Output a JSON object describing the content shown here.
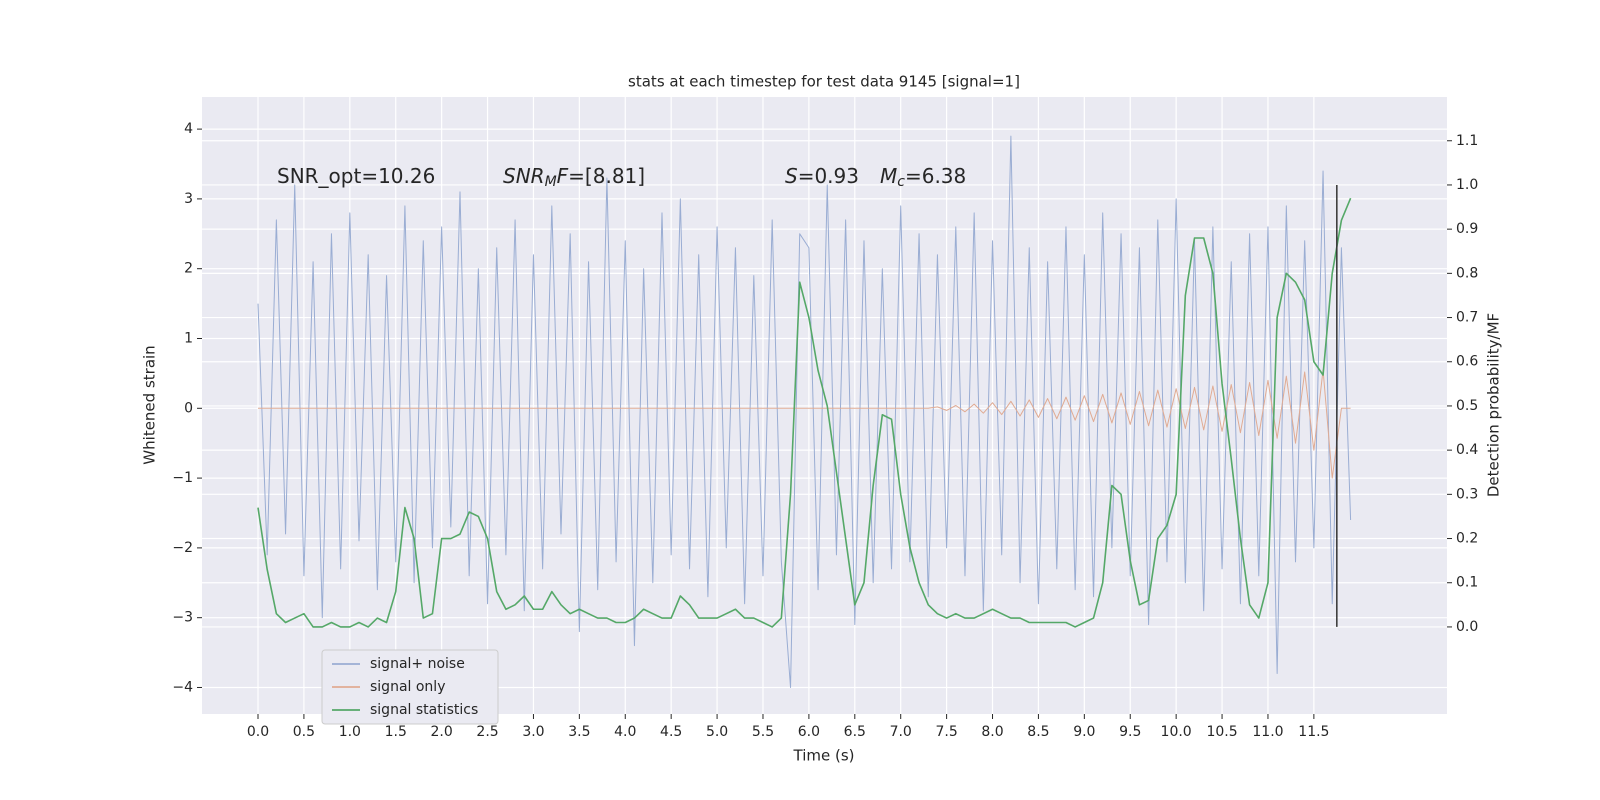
{
  "chart_data": {
    "type": "line",
    "title": "stats at each timestep for test data 9145 [signal=1]",
    "xlabel": "Time (s)",
    "ylabel": "Whitened strain",
    "y2label": "Detection probability/MF",
    "annotations": [
      {
        "parts": [
          {
            "text": "SNR_opt=10.26"
          }
        ]
      },
      {
        "parts": [
          {
            "text": "SNR",
            "italic": true
          },
          {
            "text": "M",
            "italic": true,
            "sub": true
          },
          {
            "text": "F",
            "italic": true
          },
          {
            "text": "=[8.81]"
          }
        ]
      },
      {
        "parts": [
          {
            "text": "S",
            "italic": true
          },
          {
            "text": "=0.93"
          }
        ]
      },
      {
        "parts": [
          {
            "text": "M",
            "italic": true
          },
          {
            "text": "c",
            "italic": true,
            "sub": true
          },
          {
            "text": "=6.38"
          }
        ]
      }
    ],
    "x": [
      0,
      0.1,
      0.2,
      0.3,
      0.4,
      0.5,
      0.6,
      0.7,
      0.8,
      0.9,
      1,
      1.1,
      1.2,
      1.3,
      1.4,
      1.5,
      1.6,
      1.7,
      1.8,
      1.9,
      2,
      2.1,
      2.2,
      2.3,
      2.4,
      2.5,
      2.6,
      2.7,
      2.8,
      2.9,
      3,
      3.1,
      3.2,
      3.3,
      3.4,
      3.5,
      3.6,
      3.7,
      3.8,
      3.9,
      4,
      4.1,
      4.2,
      4.3,
      4.4,
      4.5,
      4.6,
      4.7,
      4.8,
      4.9,
      5,
      5.1,
      5.2,
      5.3,
      5.4,
      5.5,
      5.6,
      5.7,
      5.8,
      5.9,
      6,
      6.1,
      6.2,
      6.3,
      6.4,
      6.5,
      6.6,
      6.7,
      6.8,
      6.9,
      7,
      7.1,
      7.2,
      7.3,
      7.4,
      7.5,
      7.6,
      7.7,
      7.8,
      7.9,
      8,
      8.1,
      8.2,
      8.3,
      8.4,
      8.5,
      8.6,
      8.7,
      8.8,
      8.9,
      9,
      9.1,
      9.2,
      9.3,
      9.4,
      9.5,
      9.6,
      9.7,
      9.8,
      9.9,
      10,
      10.1,
      10.2,
      10.3,
      10.4,
      10.5,
      10.6,
      10.7,
      10.8,
      10.9,
      11,
      11.1,
      11.2,
      11.3,
      11.4,
      11.5,
      11.6,
      11.7,
      11.8,
      11.9
    ],
    "series": [
      {
        "name": "signal+ noise",
        "color": "#9aadd3",
        "width": 1,
        "values": [
          1.5,
          -2.1,
          2.7,
          -1.8,
          3.2,
          -2.4,
          2.1,
          -3.0,
          2.5,
          -2.3,
          2.8,
          -1.9,
          2.2,
          -2.6,
          1.9,
          -2.2,
          2.9,
          -2.5,
          2.4,
          -2.0,
          2.6,
          -1.7,
          3.1,
          -2.4,
          2.0,
          -2.8,
          2.3,
          -2.1,
          2.7,
          -2.9,
          2.2,
          -2.3,
          2.9,
          -1.8,
          2.5,
          -3.2,
          2.1,
          -2.6,
          3.3,
          -2.2,
          2.4,
          -3.4,
          2.0,
          -2.5,
          2.8,
          -2.1,
          3.0,
          -2.3,
          2.2,
          -2.7,
          2.6,
          -2.0,
          2.3,
          -2.8,
          1.9,
          -2.4,
          2.7,
          -2.2,
          -4.0,
          2.5,
          2.3,
          -2.6,
          3.2,
          -2.1,
          2.7,
          -3.1,
          2.4,
          -2.5,
          2.0,
          -2.3,
          2.9,
          -2.2,
          2.5,
          -2.7,
          2.2,
          -2.0,
          2.6,
          -2.4,
          2.8,
          -2.9,
          2.4,
          -2.1,
          3.9,
          -2.5,
          2.3,
          -2.8,
          2.1,
          -2.3,
          2.6,
          -2.6,
          2.2,
          -2.7,
          2.8,
          -2.0,
          2.5,
          -2.4,
          2.3,
          -3.1,
          2.7,
          -2.2,
          3.0,
          -2.5,
          2.4,
          -2.9,
          2.6,
          -2.3,
          2.1,
          -2.8,
          2.5,
          -2.4,
          2.6,
          -3.8,
          2.9,
          -2.2,
          2.4,
          -2.0,
          3.4,
          -2.8,
          2.3,
          -1.6
        ]
      },
      {
        "name": "signal only",
        "color": "#e0ab93",
        "width": 1,
        "values": [
          0,
          0,
          0,
          0,
          0,
          0,
          0,
          0,
          0,
          0,
          0,
          0,
          0,
          0,
          0,
          0,
          0,
          0,
          0,
          0,
          0,
          0,
          0,
          0,
          0,
          0,
          0,
          0,
          0,
          0,
          0,
          0,
          0,
          0,
          0,
          0,
          0,
          0,
          0,
          0,
          0,
          0,
          0,
          0,
          0,
          0,
          0,
          0,
          0,
          0,
          0,
          0,
          0,
          0,
          0,
          0,
          0,
          0,
          0,
          0,
          0,
          0,
          0,
          0,
          0,
          0,
          0,
          0,
          0,
          0,
          0,
          0,
          0,
          0,
          0.02,
          -0.03,
          0.04,
          -0.05,
          0.06,
          -0.07,
          0.08,
          -0.09,
          0.1,
          -0.11,
          0.12,
          -0.13,
          0.14,
          -0.15,
          0.16,
          -0.17,
          0.18,
          -0.19,
          0.2,
          -0.21,
          0.22,
          -0.23,
          0.24,
          -0.25,
          0.26,
          -0.27,
          0.28,
          -0.29,
          0.3,
          -0.31,
          0.32,
          -0.33,
          0.34,
          -0.35,
          0.37,
          -0.39,
          0.4,
          -0.43,
          0.46,
          -0.5,
          0.52,
          -0.6,
          0.55,
          -1.0,
          0,
          0
        ]
      },
      {
        "name": "signal statistics",
        "color": "#55a868",
        "width": 1.6,
        "axis": "y2",
        "values": [
          0.27,
          0.13,
          0.03,
          0.01,
          0.02,
          0.03,
          0.0,
          0.0,
          0.01,
          0.0,
          0.0,
          0.01,
          0.0,
          0.02,
          0.01,
          0.08,
          0.27,
          0.2,
          0.02,
          0.03,
          0.2,
          0.2,
          0.21,
          0.26,
          0.25,
          0.2,
          0.08,
          0.04,
          0.05,
          0.07,
          0.04,
          0.04,
          0.08,
          0.05,
          0.03,
          0.04,
          0.03,
          0.02,
          0.02,
          0.01,
          0.01,
          0.02,
          0.04,
          0.03,
          0.02,
          0.02,
          0.07,
          0.05,
          0.02,
          0.02,
          0.02,
          0.03,
          0.04,
          0.02,
          0.02,
          0.01,
          0.0,
          0.02,
          0.3,
          0.78,
          0.7,
          0.58,
          0.5,
          0.35,
          0.2,
          0.05,
          0.1,
          0.32,
          0.48,
          0.47,
          0.3,
          0.18,
          0.1,
          0.05,
          0.03,
          0.02,
          0.03,
          0.02,
          0.02,
          0.03,
          0.04,
          0.03,
          0.02,
          0.02,
          0.01,
          0.01,
          0.01,
          0.01,
          0.01,
          0.0,
          0.01,
          0.02,
          0.1,
          0.32,
          0.3,
          0.15,
          0.05,
          0.06,
          0.2,
          0.23,
          0.3,
          0.75,
          0.88,
          0.88,
          0.8,
          0.55,
          0.38,
          0.2,
          0.05,
          0.02,
          0.1,
          0.7,
          0.8,
          0.78,
          0.74,
          0.6,
          0.57,
          0.8,
          0.92,
          0.97
        ]
      }
    ],
    "vline": {
      "x": 11.75,
      "y2": [
        0,
        1
      ],
      "color": "#333333"
    },
    "xlim": [
      -0.61,
      12.95
    ],
    "ylim": [
      -4.38,
      4.46
    ],
    "y2lim": [
      -0.197,
      1.199
    ],
    "xticks": [
      {
        "value": 0,
        "label": "0.0"
      },
      0.5,
      {
        "value": 1,
        "label": "1.0"
      },
      1.5,
      {
        "value": 2,
        "label": "2.0"
      },
      2.5,
      {
        "value": 3,
        "label": "3.0"
      },
      3.5,
      {
        "value": 4,
        "label": "4.0"
      },
      4.5,
      {
        "value": 5,
        "label": "5.0"
      },
      5.5,
      {
        "value": 6,
        "label": "6.0"
      },
      6.5,
      {
        "value": 7,
        "label": "7.0"
      },
      7.5,
      {
        "value": 8,
        "label": "8.0"
      },
      8.5,
      {
        "value": 9,
        "label": "9.0"
      },
      9.5,
      {
        "value": 10,
        "label": "10.0"
      },
      10.5,
      {
        "value": 11,
        "label": "11.0"
      },
      11.5
    ],
    "yticks": [
      {
        "value": -4,
        "label": "−4"
      },
      {
        "value": -3,
        "label": "−3"
      },
      {
        "value": -2,
        "label": "−2"
      },
      {
        "value": -1,
        "label": "−1"
      },
      0,
      1,
      2,
      3,
      4
    ],
    "y2ticks": [
      {
        "value": 0,
        "label": "0.0"
      },
      0.1,
      0.2,
      0.3,
      0.4,
      0.5,
      0.6,
      0.7,
      0.8,
      0.9,
      {
        "value": 1,
        "label": "1.0"
      },
      1.1
    ],
    "grid": true,
    "legend": "lower left"
  }
}
